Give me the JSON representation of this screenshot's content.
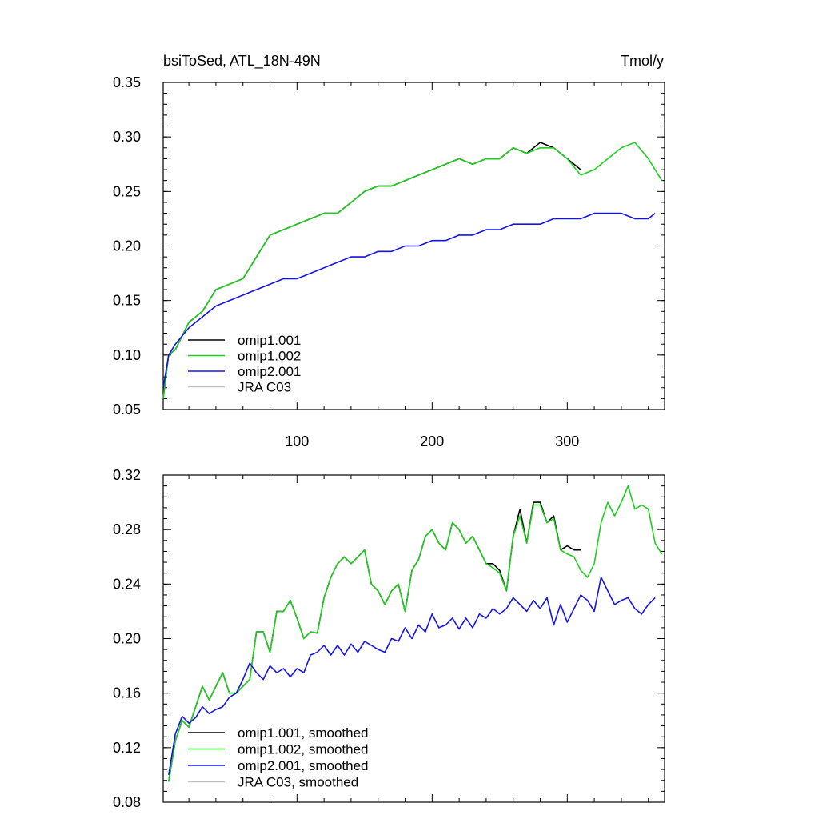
{
  "chart_data": [
    {
      "type": "line",
      "title": "bsiToSed, ATL_18N-49N",
      "units": "Tmol/y",
      "xlabel": "",
      "ylabel": "",
      "xlim": [
        1,
        372
      ],
      "ylim": [
        0.05,
        0.35
      ],
      "yticks": [
        "0.05",
        "0.10",
        "0.15",
        "0.20",
        "0.25",
        "0.30",
        "0.35"
      ],
      "xticks": [
        "100",
        "200",
        "300"
      ],
      "legend_position": "bottom-left",
      "series": [
        {
          "name": "omip1.001",
          "color": "#000000",
          "x": [
            1,
            5,
            10,
            20,
            30,
            40,
            50,
            60,
            70,
            80,
            90,
            100,
            110,
            120,
            130,
            140,
            150,
            160,
            170,
            180,
            190,
            200,
            210,
            220,
            230,
            240,
            250,
            260,
            270,
            280,
            290,
            300,
            310
          ],
          "y": [
            0.06,
            0.1,
            0.105,
            0.13,
            0.14,
            0.16,
            0.165,
            0.17,
            0.19,
            0.21,
            0.215,
            0.22,
            0.225,
            0.23,
            0.23,
            0.24,
            0.25,
            0.255,
            0.255,
            0.26,
            0.265,
            0.27,
            0.275,
            0.28,
            0.275,
            0.28,
            0.28,
            0.29,
            0.285,
            0.295,
            0.29,
            0.28,
            0.27
          ]
        },
        {
          "name": "omip1.002",
          "color": "#1ecf1e",
          "x": [
            1,
            5,
            10,
            20,
            30,
            40,
            50,
            60,
            70,
            80,
            90,
            100,
            110,
            120,
            130,
            140,
            150,
            160,
            170,
            180,
            190,
            200,
            210,
            220,
            230,
            240,
            250,
            260,
            270,
            280,
            290,
            300,
            310,
            320,
            330,
            340,
            350,
            360,
            370
          ],
          "y": [
            0.06,
            0.1,
            0.105,
            0.13,
            0.14,
            0.16,
            0.165,
            0.17,
            0.19,
            0.21,
            0.215,
            0.22,
            0.225,
            0.23,
            0.23,
            0.24,
            0.25,
            0.255,
            0.255,
            0.26,
            0.265,
            0.27,
            0.275,
            0.28,
            0.275,
            0.28,
            0.28,
            0.29,
            0.285,
            0.29,
            0.29,
            0.28,
            0.265,
            0.27,
            0.28,
            0.29,
            0.295,
            0.28,
            0.26
          ]
        },
        {
          "name": "omip2.001",
          "color": "#1414e6",
          "x": [
            1,
            5,
            10,
            20,
            30,
            40,
            50,
            60,
            70,
            80,
            90,
            100,
            110,
            120,
            130,
            140,
            150,
            160,
            170,
            180,
            190,
            200,
            210,
            220,
            230,
            240,
            250,
            260,
            270,
            280,
            290,
            300,
            310,
            320,
            330,
            340,
            350,
            360,
            365
          ],
          "y": [
            0.07,
            0.1,
            0.11,
            0.125,
            0.135,
            0.145,
            0.15,
            0.155,
            0.16,
            0.165,
            0.17,
            0.17,
            0.175,
            0.18,
            0.185,
            0.19,
            0.19,
            0.195,
            0.195,
            0.2,
            0.2,
            0.205,
            0.205,
            0.21,
            0.21,
            0.215,
            0.215,
            0.22,
            0.22,
            0.22,
            0.225,
            0.225,
            0.225,
            0.23,
            0.23,
            0.23,
            0.225,
            0.225,
            0.23
          ]
        },
        {
          "name": "JRA C03",
          "color": "#c0c0c0",
          "x": [],
          "y": []
        }
      ]
    },
    {
      "type": "line",
      "title": "",
      "xlabel": "",
      "ylabel": "",
      "xlim": [
        1,
        372
      ],
      "ylim": [
        0.08,
        0.32
      ],
      "yticks": [
        "0.08",
        "0.12",
        "0.16",
        "0.20",
        "0.24",
        "0.28",
        "0.32"
      ],
      "legend_position": "bottom-left",
      "series": [
        {
          "name": "omip1.001, smoothed",
          "color": "#000000",
          "x": [
            5,
            10,
            15,
            20,
            25,
            30,
            35,
            40,
            45,
            50,
            55,
            60,
            65,
            70,
            75,
            80,
            85,
            90,
            95,
            100,
            105,
            110,
            115,
            120,
            125,
            130,
            135,
            140,
            145,
            150,
            155,
            160,
            165,
            170,
            175,
            180,
            185,
            190,
            195,
            200,
            205,
            210,
            215,
            220,
            225,
            230,
            235,
            240,
            245,
            250,
            255,
            260,
            265,
            270,
            275,
            280,
            285,
            290,
            295,
            300,
            305,
            310
          ],
          "y": [
            0.095,
            0.125,
            0.14,
            0.135,
            0.15,
            0.165,
            0.155,
            0.165,
            0.175,
            0.16,
            0.16,
            0.165,
            0.17,
            0.205,
            0.205,
            0.19,
            0.22,
            0.22,
            0.228,
            0.215,
            0.2,
            0.205,
            0.204,
            0.23,
            0.245,
            0.255,
            0.26,
            0.255,
            0.26,
            0.265,
            0.24,
            0.235,
            0.225,
            0.235,
            0.24,
            0.22,
            0.25,
            0.258,
            0.275,
            0.28,
            0.27,
            0.265,
            0.285,
            0.28,
            0.27,
            0.275,
            0.265,
            0.255,
            0.255,
            0.25,
            0.235,
            0.275,
            0.295,
            0.27,
            0.3,
            0.3,
            0.285,
            0.29,
            0.265,
            0.268,
            0.265,
            0.265
          ]
        },
        {
          "name": "omip1.002, smoothed",
          "color": "#1ecf1e",
          "x": [
            5,
            10,
            15,
            20,
            25,
            30,
            35,
            40,
            45,
            50,
            55,
            60,
            65,
            70,
            75,
            80,
            85,
            90,
            95,
            100,
            105,
            110,
            115,
            120,
            125,
            130,
            135,
            140,
            145,
            150,
            155,
            160,
            165,
            170,
            175,
            180,
            185,
            190,
            195,
            200,
            205,
            210,
            215,
            220,
            225,
            230,
            235,
            240,
            245,
            250,
            255,
            260,
            265,
            270,
            275,
            280,
            285,
            290,
            295,
            300,
            305,
            310,
            315,
            320,
            325,
            330,
            335,
            340,
            345,
            350,
            355,
            360,
            365,
            370
          ],
          "y": [
            0.095,
            0.125,
            0.14,
            0.135,
            0.15,
            0.165,
            0.155,
            0.165,
            0.175,
            0.16,
            0.16,
            0.165,
            0.17,
            0.205,
            0.205,
            0.19,
            0.22,
            0.22,
            0.228,
            0.215,
            0.2,
            0.205,
            0.204,
            0.23,
            0.245,
            0.255,
            0.26,
            0.255,
            0.26,
            0.265,
            0.24,
            0.235,
            0.225,
            0.235,
            0.24,
            0.22,
            0.25,
            0.258,
            0.275,
            0.28,
            0.27,
            0.265,
            0.285,
            0.28,
            0.27,
            0.275,
            0.265,
            0.255,
            0.252,
            0.248,
            0.235,
            0.275,
            0.29,
            0.27,
            0.298,
            0.298,
            0.285,
            0.288,
            0.265,
            0.262,
            0.26,
            0.25,
            0.245,
            0.255,
            0.285,
            0.3,
            0.29,
            0.3,
            0.312,
            0.295,
            0.298,
            0.295,
            0.27,
            0.262
          ]
        },
        {
          "name": "omip2.001, smoothed",
          "color": "#1414e6",
          "x": [
            5,
            10,
            15,
            20,
            25,
            30,
            35,
            40,
            45,
            50,
            55,
            60,
            65,
            70,
            75,
            80,
            85,
            90,
            95,
            100,
            105,
            110,
            115,
            120,
            125,
            130,
            135,
            140,
            145,
            150,
            155,
            160,
            165,
            170,
            175,
            180,
            185,
            190,
            195,
            200,
            205,
            210,
            215,
            220,
            225,
            230,
            235,
            240,
            245,
            250,
            255,
            260,
            265,
            270,
            275,
            280,
            285,
            290,
            295,
            300,
            305,
            310,
            315,
            320,
            325,
            330,
            335,
            340,
            345,
            350,
            355,
            360,
            365
          ],
          "y": [
            0.1,
            0.13,
            0.143,
            0.138,
            0.142,
            0.15,
            0.145,
            0.148,
            0.15,
            0.157,
            0.16,
            0.17,
            0.182,
            0.175,
            0.17,
            0.18,
            0.175,
            0.178,
            0.172,
            0.178,
            0.175,
            0.188,
            0.19,
            0.195,
            0.188,
            0.195,
            0.188,
            0.196,
            0.19,
            0.198,
            0.195,
            0.192,
            0.19,
            0.2,
            0.198,
            0.208,
            0.2,
            0.21,
            0.205,
            0.218,
            0.208,
            0.21,
            0.215,
            0.207,
            0.215,
            0.208,
            0.218,
            0.215,
            0.222,
            0.218,
            0.222,
            0.23,
            0.225,
            0.22,
            0.228,
            0.222,
            0.23,
            0.21,
            0.225,
            0.212,
            0.222,
            0.232,
            0.228,
            0.22,
            0.245,
            0.235,
            0.225,
            0.228,
            0.23,
            0.222,
            0.218,
            0.225,
            0.23
          ]
        },
        {
          "name": "JRA C03, smoothed",
          "color": "#c0c0c0",
          "x": [],
          "y": []
        }
      ]
    }
  ]
}
